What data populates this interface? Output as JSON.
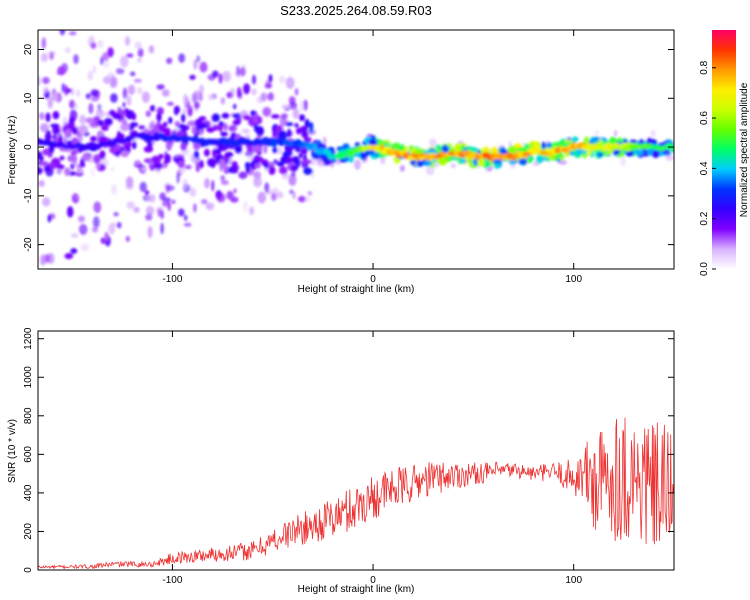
{
  "title": "S233.2025.264.08.59.R03",
  "chart_data": [
    {
      "type": "heatmap",
      "xlabel": "Height of straight line (km)",
      "ylabel": "Frequency (Hz)",
      "xlim": [
        -167,
        150
      ],
      "ylim": [
        -25,
        24
      ],
      "xticks": [
        -100,
        0,
        100
      ],
      "yticks": [
        -20,
        -10,
        0,
        10,
        20
      ],
      "colorbar": {
        "label": "Normalized spectral amplitude",
        "range": [
          0,
          0.95
        ],
        "ticks": [
          "0.0",
          "0.2",
          "0.4",
          "0.6",
          "0.8"
        ],
        "colormap": [
          "#ffffff",
          "#d9b3ff",
          "#8000ff",
          "#3300ff",
          "#0033ff",
          "#00ccff",
          "#00ff66",
          "#66ff00",
          "#ccff00",
          "#ffee00",
          "#ff9900",
          "#ff3300",
          "#ff0066"
        ]
      },
      "ridge": {
        "x": [
          -167,
          -140,
          -120,
          -100,
          -80,
          -60,
          -40,
          -30,
          -20,
          -10,
          0,
          10,
          20,
          30,
          40,
          50,
          60,
          70,
          80,
          90,
          100,
          110,
          120,
          130,
          140,
          150
        ],
        "freq": [
          1,
          0,
          2,
          2,
          1,
          1,
          1,
          0,
          -2,
          -1,
          0,
          -1,
          -2,
          -2,
          -1,
          -2,
          -2,
          -2,
          -1,
          -1,
          0,
          0,
          0,
          0,
          0,
          0
        ],
        "amplitude": [
          0.25,
          0.25,
          0.25,
          0.3,
          0.3,
          0.3,
          0.35,
          0.4,
          0.45,
          0.55,
          0.75,
          0.85,
          0.85,
          0.85,
          0.85,
          0.85,
          0.9,
          0.85,
          0.8,
          0.8,
          0.85,
          0.75,
          0.7,
          0.6,
          0.55,
          0.5
        ]
      }
    },
    {
      "type": "line",
      "xlabel": "Height of straight line (km)",
      "ylabel": "SNR (10 * v/v)",
      "xlim": [
        -167,
        150
      ],
      "ylim": [
        0,
        1240
      ],
      "xticks": [
        -100,
        0,
        100
      ],
      "yticks": [
        0,
        200,
        400,
        600,
        800,
        1000,
        1200
      ],
      "color": "#ee3333",
      "envelope": {
        "x": [
          -167,
          -140,
          -130,
          -110,
          -100,
          -80,
          -60,
          -50,
          -40,
          -30,
          -20,
          -10,
          0,
          10,
          20,
          30,
          40,
          50,
          60,
          70,
          80,
          90,
          100,
          105,
          110,
          115,
          120,
          130,
          140,
          150
        ],
        "center": [
          15,
          18,
          30,
          30,
          60,
          80,
          100,
          150,
          200,
          230,
          270,
          320,
          380,
          420,
          450,
          480,
          490,
          500,
          510,
          520,
          500,
          510,
          480,
          500,
          450,
          450,
          500,
          480,
          420,
          400
        ],
        "spread": [
          15,
          20,
          30,
          30,
          60,
          80,
          100,
          130,
          160,
          180,
          220,
          240,
          240,
          220,
          200,
          180,
          150,
          120,
          100,
          80,
          80,
          100,
          200,
          300,
          600,
          600,
          700,
          700,
          700,
          700
        ]
      }
    }
  ]
}
